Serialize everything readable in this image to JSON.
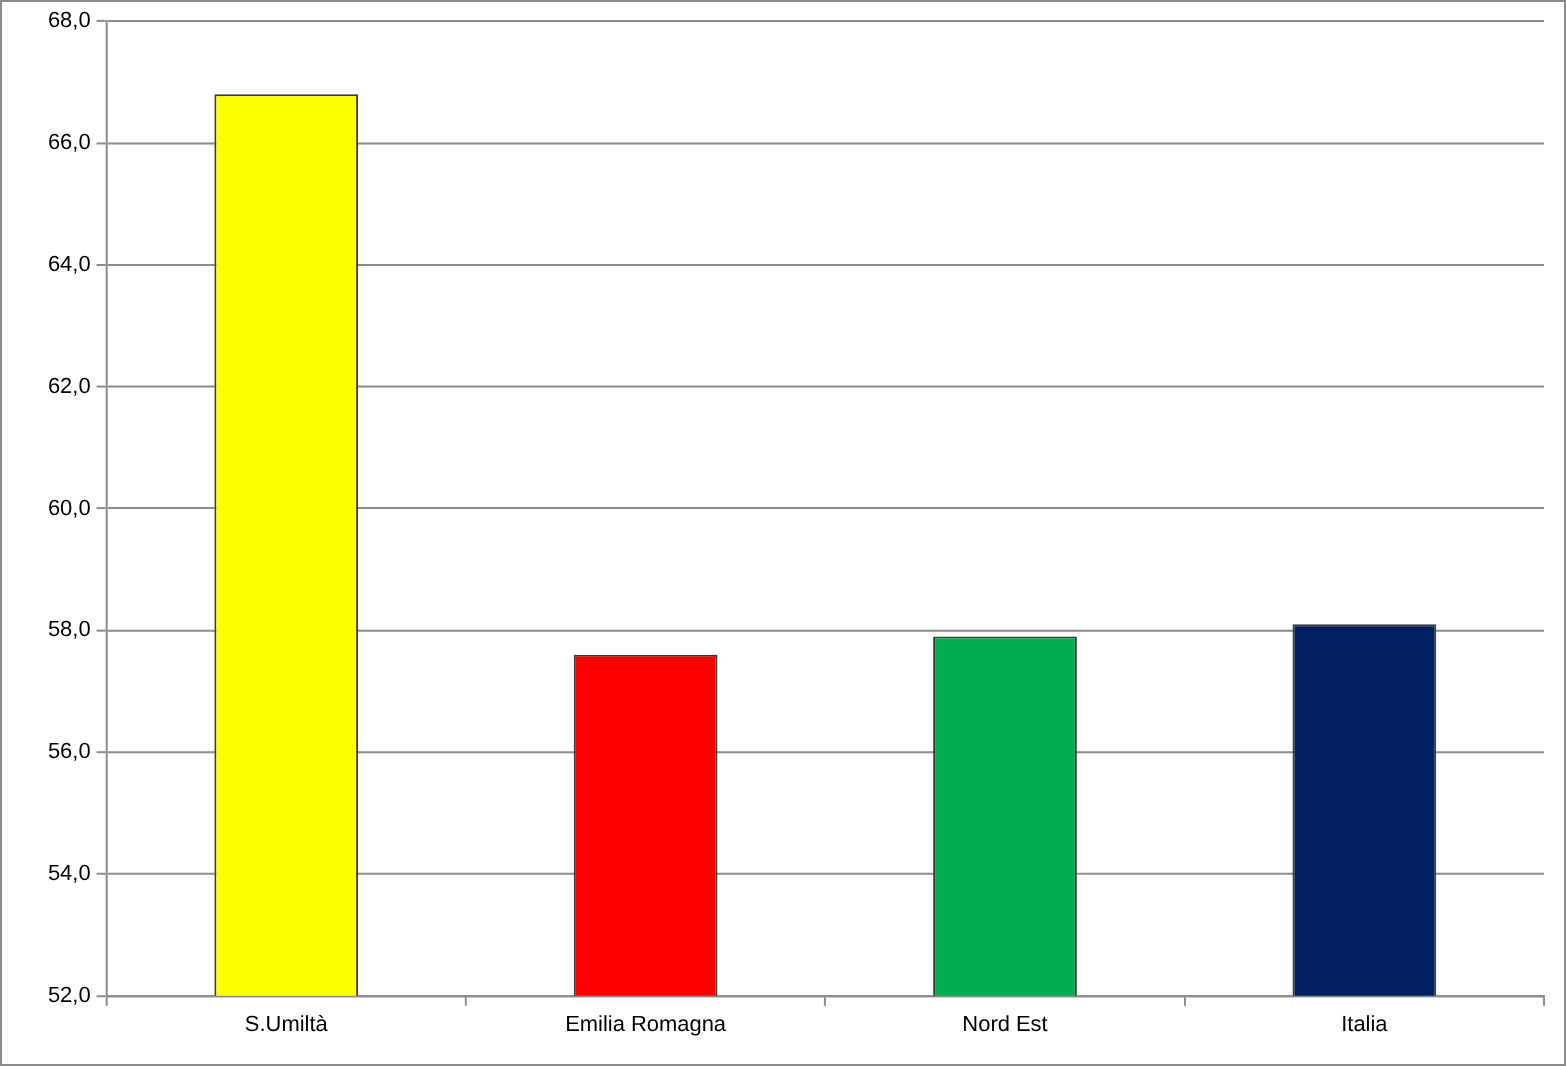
{
  "chart_data": {
    "type": "bar",
    "categories": [
      "S.Umiltà",
      "Emilia Romagna",
      "Nord Est",
      "Italia"
    ],
    "values": [
      66.8,
      57.6,
      57.9,
      58.1
    ],
    "colors": [
      "#ffff00",
      "#ff0000",
      "#00b050",
      "#002060"
    ],
    "ylim": [
      52,
      68
    ],
    "yticks": [
      {
        "value": 52,
        "label": "52,0"
      },
      {
        "value": 54,
        "label": "54,0"
      },
      {
        "value": 56,
        "label": "56,0"
      },
      {
        "value": 58,
        "label": "58,0"
      },
      {
        "value": 60,
        "label": "60,0"
      },
      {
        "value": 62,
        "label": "62,0"
      },
      {
        "value": 64,
        "label": "64,0"
      },
      {
        "value": 66,
        "label": "66,0"
      },
      {
        "value": 68,
        "label": "68,0"
      }
    ],
    "grid": "y",
    "legend": false
  }
}
